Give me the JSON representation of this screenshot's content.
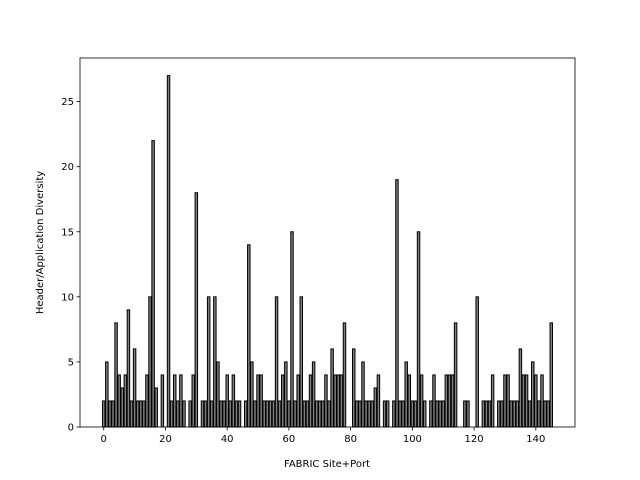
{
  "chart_data": {
    "type": "bar",
    "xlabel": "FABRIC Site+Port",
    "ylabel": "Header/Application Diversity",
    "x": [
      0,
      1,
      2,
      3,
      4,
      5,
      6,
      7,
      8,
      9,
      10,
      11,
      12,
      13,
      14,
      15,
      16,
      17,
      18,
      19,
      20,
      21,
      22,
      23,
      24,
      25,
      26,
      27,
      28,
      29,
      30,
      31,
      32,
      33,
      34,
      35,
      36,
      37,
      38,
      39,
      40,
      41,
      42,
      43,
      44,
      45,
      46,
      47,
      48,
      49,
      50,
      51,
      52,
      53,
      54,
      55,
      56,
      57,
      58,
      59,
      60,
      61,
      62,
      63,
      64,
      65,
      66,
      67,
      68,
      69,
      70,
      71,
      72,
      73,
      74,
      75,
      76,
      77,
      78,
      79,
      80,
      81,
      82,
      83,
      84,
      85,
      86,
      87,
      88,
      89,
      90,
      91,
      92,
      93,
      94,
      95,
      96,
      97,
      98,
      99,
      100,
      101,
      102,
      103,
      104,
      105,
      106,
      107,
      108,
      109,
      110,
      111,
      112,
      113,
      114,
      115,
      116,
      117,
      118,
      119,
      120,
      121,
      122,
      123,
      124,
      125,
      126,
      127,
      128,
      129,
      130,
      131,
      132,
      133,
      134,
      135,
      136,
      137,
      138,
      139,
      140,
      141,
      142,
      143,
      144,
      145
    ],
    "values": [
      2,
      5,
      2,
      2,
      8,
      4,
      3,
      4,
      9,
      2,
      6,
      2,
      2,
      2,
      4,
      10,
      22,
      3,
      0,
      4,
      0,
      27,
      2,
      4,
      2,
      4,
      2,
      0,
      2,
      4,
      18,
      0,
      2,
      2,
      10,
      2,
      10,
      5,
      2,
      2,
      4,
      2,
      4,
      2,
      2,
      0,
      2,
      14,
      5,
      2,
      4,
      4,
      2,
      2,
      2,
      2,
      10,
      2,
      4,
      5,
      2,
      15,
      2,
      4,
      10,
      2,
      2,
      4,
      5,
      2,
      2,
      2,
      4,
      2,
      6,
      4,
      4,
      4,
      8,
      0,
      0,
      6,
      2,
      2,
      5,
      2,
      2,
      2,
      3,
      4,
      0,
      2,
      2,
      0,
      2,
      19,
      2,
      2,
      5,
      4,
      2,
      2,
      15,
      4,
      2,
      0,
      2,
      4,
      2,
      2,
      2,
      4,
      4,
      4,
      8,
      0,
      0,
      2,
      2,
      0,
      0,
      10,
      0,
      2,
      2,
      2,
      4,
      0,
      2,
      2,
      4,
      4,
      2,
      2,
      2,
      6,
      4,
      4,
      2,
      5,
      4,
      2,
      4,
      2,
      2,
      8
    ],
    "color": "#808080",
    "edgecolor": "#000000",
    "bar_width": 0.8,
    "xlim": [
      -7.69,
      152.69
    ],
    "xticks": [
      0,
      20,
      40,
      60,
      80,
      100,
      120,
      140
    ],
    "ylim": [
      0,
      28.35
    ],
    "yticks": [
      0,
      5,
      10,
      15,
      20,
      25
    ]
  }
}
